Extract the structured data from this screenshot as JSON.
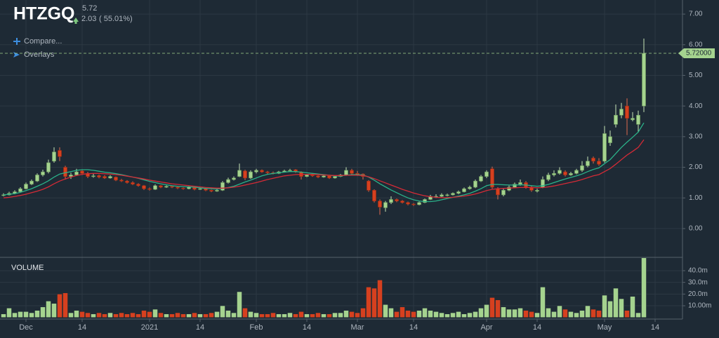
{
  "chart_data": {
    "type": "candlestick",
    "symbol": "HTZGQ",
    "price": "5.72",
    "change": "2.03",
    "change_pct": "( 55.01%)",
    "menu": [
      "Compare...",
      "Overlays"
    ],
    "volume_title": "VOLUME",
    "price_line": {
      "value": 5.72,
      "label": "5.72000"
    },
    "up_color": "#a5d38f",
    "down_color": "#d6401f",
    "ylim": [
      -0.94,
      7.46
    ],
    "yticks": [
      {
        "value": 0,
        "label": "0.00"
      },
      {
        "value": 1,
        "label": "1.00"
      },
      {
        "value": 2,
        "label": "2.00"
      },
      {
        "value": 3,
        "label": "3.00"
      },
      {
        "value": 4,
        "label": "4.00"
      },
      {
        "value": 5,
        "label": "5.00"
      },
      {
        "value": 6,
        "label": "6.00"
      },
      {
        "value": 7,
        "label": "7.00"
      }
    ],
    "vlim": [
      0,
      51.4
    ],
    "vticks": [
      {
        "value": 10,
        "label": "10.00m"
      },
      {
        "value": 20,
        "label": "20.0m"
      },
      {
        "value": 30,
        "label": "30.0m"
      },
      {
        "value": 40,
        "label": "40.0m"
      }
    ],
    "xlim": [
      -0.625,
      120.875
    ],
    "xticks": [
      {
        "value": 4,
        "label": "Dec"
      },
      {
        "value": 14,
        "label": "14"
      },
      {
        "value": 26,
        "label": "2021"
      },
      {
        "value": 35,
        "label": "14"
      },
      {
        "value": 45,
        "label": "Feb"
      },
      {
        "value": 54,
        "label": "14"
      },
      {
        "value": 63,
        "label": "Mar"
      },
      {
        "value": 73,
        "label": "14"
      },
      {
        "value": 86,
        "label": "Apr"
      },
      {
        "value": 95,
        "label": "14"
      },
      {
        "value": 107,
        "label": "May"
      },
      {
        "value": 116,
        "label": "14"
      }
    ],
    "candles": [
      [
        1.08,
        1.15,
        1.05,
        1.1
      ],
      [
        1.1,
        1.2,
        1.08,
        1.15
      ],
      [
        1.15,
        1.25,
        1.12,
        1.2
      ],
      [
        1.2,
        1.35,
        1.18,
        1.3
      ],
      [
        1.3,
        1.5,
        1.28,
        1.45
      ],
      [
        1.45,
        1.6,
        1.42,
        1.55
      ],
      [
        1.55,
        1.8,
        1.52,
        1.75
      ],
      [
        1.75,
        1.92,
        1.7,
        1.85
      ],
      [
        1.85,
        2.25,
        1.8,
        2.15
      ],
      [
        2.2,
        2.65,
        2.15,
        2.5
      ],
      [
        2.55,
        2.65,
        2.2,
        2.35
      ],
      [
        2.0,
        2.05,
        1.6,
        1.7
      ],
      [
        1.7,
        1.82,
        1.62,
        1.75
      ],
      [
        1.75,
        1.95,
        1.72,
        1.85
      ],
      [
        1.88,
        1.92,
        1.75,
        1.8
      ],
      [
        1.8,
        1.85,
        1.65,
        1.7
      ],
      [
        1.7,
        1.78,
        1.66,
        1.72
      ],
      [
        1.73,
        1.76,
        1.64,
        1.68
      ],
      [
        1.7,
        1.74,
        1.62,
        1.65
      ],
      [
        1.65,
        1.74,
        1.63,
        1.7
      ],
      [
        1.68,
        1.7,
        1.55,
        1.58
      ],
      [
        1.58,
        1.62,
        1.52,
        1.55
      ],
      [
        1.55,
        1.58,
        1.47,
        1.5
      ],
      [
        1.5,
        1.54,
        1.42,
        1.45
      ],
      [
        1.45,
        1.48,
        1.37,
        1.4
      ],
      [
        1.4,
        1.42,
        1.26,
        1.3
      ],
      [
        1.3,
        1.34,
        1.24,
        1.28
      ],
      [
        1.28,
        1.44,
        1.26,
        1.4
      ],
      [
        1.4,
        1.42,
        1.32,
        1.35
      ],
      [
        1.35,
        1.41,
        1.33,
        1.38
      ],
      [
        1.38,
        1.4,
        1.32,
        1.35
      ],
      [
        1.35,
        1.37,
        1.29,
        1.32
      ],
      [
        1.32,
        1.34,
        1.27,
        1.3
      ],
      [
        1.3,
        1.38,
        1.28,
        1.35
      ],
      [
        1.34,
        1.36,
        1.25,
        1.28
      ],
      [
        1.28,
        1.33,
        1.26,
        1.3
      ],
      [
        1.3,
        1.32,
        1.22,
        1.25
      ],
      [
        1.25,
        1.27,
        1.19,
        1.22
      ],
      [
        1.22,
        1.28,
        1.2,
        1.25
      ],
      [
        1.25,
        1.55,
        1.23,
        1.5
      ],
      [
        1.5,
        1.66,
        1.47,
        1.6
      ],
      [
        1.6,
        1.7,
        1.57,
        1.65
      ],
      [
        1.7,
        2.12,
        1.68,
        1.9
      ],
      [
        1.88,
        1.92,
        1.58,
        1.65
      ],
      [
        1.65,
        1.9,
        1.62,
        1.85
      ],
      [
        1.85,
        1.95,
        1.8,
        1.9
      ],
      [
        1.9,
        1.93,
        1.82,
        1.85
      ],
      [
        1.85,
        1.88,
        1.78,
        1.82
      ],
      [
        1.82,
        1.86,
        1.77,
        1.8
      ],
      [
        1.8,
        1.88,
        1.78,
        1.85
      ],
      [
        1.85,
        1.92,
        1.83,
        1.88
      ],
      [
        1.88,
        1.95,
        1.86,
        1.9
      ],
      [
        1.92,
        1.94,
        1.82,
        1.85
      ],
      [
        1.85,
        1.87,
        1.6,
        1.7
      ],
      [
        1.7,
        1.78,
        1.68,
        1.75
      ],
      [
        1.75,
        1.77,
        1.69,
        1.72
      ],
      [
        1.72,
        1.74,
        1.65,
        1.68
      ],
      [
        1.68,
        1.75,
        1.66,
        1.72
      ],
      [
        1.72,
        1.74,
        1.62,
        1.65
      ],
      [
        1.65,
        1.73,
        1.63,
        1.7
      ],
      [
        1.7,
        1.78,
        1.68,
        1.75
      ],
      [
        1.75,
        2.0,
        1.72,
        1.9
      ],
      [
        1.9,
        1.95,
        1.75,
        1.8
      ],
      [
        1.8,
        1.88,
        1.72,
        1.75
      ],
      [
        1.78,
        1.8,
        1.6,
        1.7
      ],
      [
        1.55,
        1.58,
        1.2,
        1.25
      ],
      [
        1.25,
        1.28,
        0.85,
        0.9
      ],
      [
        0.9,
        0.95,
        0.45,
        0.7
      ],
      [
        0.68,
        0.9,
        0.55,
        0.85
      ],
      [
        0.85,
        1.05,
        0.8,
        0.95
      ],
      [
        0.95,
        0.98,
        0.86,
        0.9
      ],
      [
        0.9,
        0.93,
        0.82,
        0.85
      ],
      [
        0.85,
        0.88,
        0.76,
        0.8
      ],
      [
        0.8,
        0.83,
        0.74,
        0.78
      ],
      [
        0.78,
        0.88,
        0.76,
        0.85
      ],
      [
        0.85,
        0.98,
        0.83,
        0.95
      ],
      [
        0.95,
        1.1,
        0.93,
        1.05
      ],
      [
        1.02,
        1.12,
        1.0,
        1.05
      ],
      [
        1.05,
        1.15,
        1.03,
        1.1
      ],
      [
        1.08,
        1.14,
        1.05,
        1.1
      ],
      [
        1.1,
        1.18,
        1.08,
        1.15
      ],
      [
        1.15,
        1.24,
        1.12,
        1.2
      ],
      [
        1.2,
        1.34,
        1.18,
        1.3
      ],
      [
        1.3,
        1.4,
        1.27,
        1.35
      ],
      [
        1.35,
        1.6,
        1.32,
        1.55
      ],
      [
        1.55,
        1.75,
        1.52,
        1.7
      ],
      [
        1.7,
        1.9,
        1.65,
        1.85
      ],
      [
        1.95,
        2.02,
        1.3,
        1.35
      ],
      [
        1.3,
        1.35,
        0.95,
        1.1
      ],
      [
        1.1,
        1.3,
        1.05,
        1.25
      ],
      [
        1.25,
        1.4,
        1.22,
        1.35
      ],
      [
        1.35,
        1.5,
        1.32,
        1.45
      ],
      [
        1.45,
        1.6,
        1.4,
        1.5
      ],
      [
        1.5,
        1.55,
        1.3,
        1.35
      ],
      [
        1.35,
        1.4,
        1.2,
        1.25
      ],
      [
        1.22,
        1.3,
        1.18,
        1.25
      ],
      [
        1.35,
        1.7,
        1.32,
        1.6
      ],
      [
        1.6,
        1.82,
        1.55,
        1.75
      ],
      [
        1.75,
        1.9,
        1.7,
        1.8
      ],
      [
        1.8,
        2.0,
        1.76,
        1.9
      ],
      [
        1.85,
        1.9,
        1.7,
        1.75
      ],
      [
        1.75,
        1.85,
        1.72,
        1.8
      ],
      [
        1.8,
        1.95,
        1.77,
        1.9
      ],
      [
        1.9,
        2.2,
        1.85,
        2.05
      ],
      [
        2.05,
        2.35,
        2.0,
        2.2
      ],
      [
        2.3,
        2.35,
        2.12,
        2.2
      ],
      [
        2.2,
        2.3,
        2.05,
        2.1
      ],
      [
        2.2,
        3.35,
        2.15,
        3.1
      ],
      [
        2.8,
        3.2,
        2.7,
        3.0
      ],
      [
        3.4,
        4.05,
        3.3,
        3.7
      ],
      [
        3.7,
        4.1,
        3.6,
        3.9
      ],
      [
        4.0,
        4.25,
        3.05,
        3.6
      ],
      [
        3.55,
        3.8,
        3.5,
        3.6
      ],
      [
        3.4,
        3.85,
        3.15,
        3.7
      ],
      [
        4.0,
        6.2,
        3.8,
        5.72
      ]
    ],
    "volume": [
      3,
      8,
      4,
      5,
      5,
      4,
      6,
      9,
      14,
      12,
      20,
      21,
      4,
      6,
      5,
      4,
      3,
      4,
      3,
      4,
      3,
      4,
      3,
      4,
      3,
      6,
      5,
      7,
      4,
      3,
      3,
      4,
      3,
      3,
      4,
      3,
      3,
      4,
      5,
      10,
      6,
      4,
      22,
      8,
      5,
      4,
      3,
      3,
      4,
      3,
      3,
      4,
      3,
      5,
      3,
      3,
      4,
      3,
      3,
      4,
      4,
      6,
      5,
      4,
      8,
      26,
      25,
      32,
      11,
      8,
      5,
      9,
      6,
      5,
      6,
      8,
      6,
      5,
      4,
      3,
      4,
      5,
      3,
      4,
      5,
      8,
      11,
      17,
      15,
      9,
      7,
      7,
      8,
      6,
      5,
      4,
      26,
      8,
      5,
      10,
      7,
      5,
      4,
      6,
      10,
      7,
      6,
      19,
      14,
      25,
      16,
      6,
      18,
      4,
      51
    ],
    "series": [
      {
        "color": "#2bb38a",
        "values": [
          1.1,
          1.12,
          1.14,
          1.18,
          1.24,
          1.3,
          1.38,
          1.46,
          1.56,
          1.68,
          1.78,
          1.82,
          1.86,
          1.9,
          1.92,
          1.92,
          1.9,
          1.87,
          1.84,
          1.82,
          1.79,
          1.76,
          1.72,
          1.68,
          1.64,
          1.59,
          1.54,
          1.5,
          1.46,
          1.43,
          1.4,
          1.38,
          1.37,
          1.36,
          1.35,
          1.33,
          1.31,
          1.3,
          1.29,
          1.31,
          1.34,
          1.38,
          1.45,
          1.52,
          1.58,
          1.65,
          1.72,
          1.77,
          1.8,
          1.82,
          1.84,
          1.86,
          1.86,
          1.84,
          1.82,
          1.8,
          1.78,
          1.76,
          1.74,
          1.72,
          1.72,
          1.74,
          1.76,
          1.76,
          1.75,
          1.68,
          1.58,
          1.46,
          1.36,
          1.26,
          1.17,
          1.08,
          1.0,
          0.94,
          0.9,
          0.88,
          0.88,
          0.9,
          0.94,
          0.98,
          1.02,
          1.06,
          1.1,
          1.15,
          1.22,
          1.3,
          1.4,
          1.44,
          1.44,
          1.43,
          1.42,
          1.42,
          1.43,
          1.42,
          1.4,
          1.38,
          1.4,
          1.44,
          1.5,
          1.56,
          1.62,
          1.67,
          1.72,
          1.78,
          1.86,
          1.93,
          1.98,
          2.12,
          2.25,
          2.45,
          2.65,
          2.82,
          2.98,
          3.15,
          3.45
        ]
      },
      {
        "color": "#d42a36",
        "values": [
          1.0,
          1.02,
          1.05,
          1.08,
          1.12,
          1.17,
          1.22,
          1.28,
          1.36,
          1.46,
          1.55,
          1.62,
          1.68,
          1.73,
          1.77,
          1.79,
          1.8,
          1.8,
          1.79,
          1.78,
          1.76,
          1.74,
          1.71,
          1.68,
          1.65,
          1.62,
          1.58,
          1.55,
          1.52,
          1.49,
          1.46,
          1.44,
          1.42,
          1.4,
          1.38,
          1.36,
          1.34,
          1.33,
          1.32,
          1.32,
          1.33,
          1.35,
          1.38,
          1.42,
          1.46,
          1.5,
          1.55,
          1.6,
          1.64,
          1.68,
          1.72,
          1.74,
          1.76,
          1.77,
          1.77,
          1.77,
          1.76,
          1.75,
          1.74,
          1.73,
          1.73,
          1.74,
          1.74,
          1.74,
          1.73,
          1.69,
          1.63,
          1.56,
          1.49,
          1.42,
          1.35,
          1.28,
          1.22,
          1.16,
          1.11,
          1.07,
          1.04,
          1.02,
          1.01,
          1.01,
          1.02,
          1.04,
          1.06,
          1.09,
          1.13,
          1.18,
          1.24,
          1.28,
          1.3,
          1.31,
          1.32,
          1.33,
          1.34,
          1.34,
          1.34,
          1.33,
          1.34,
          1.36,
          1.39,
          1.43,
          1.47,
          1.51,
          1.55,
          1.6,
          1.66,
          1.72,
          1.76,
          1.86,
          1.96,
          2.1,
          2.25,
          2.4,
          2.52,
          2.65,
          2.9
        ]
      }
    ]
  }
}
